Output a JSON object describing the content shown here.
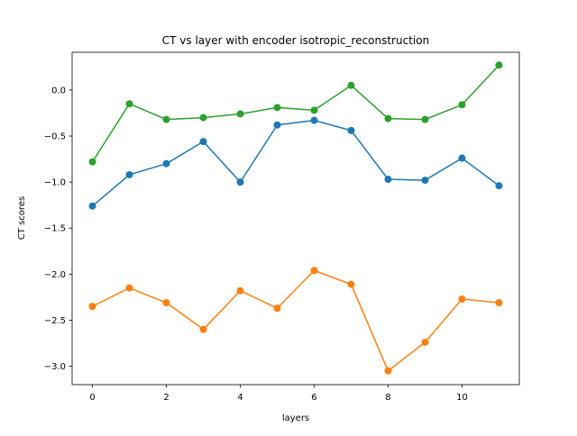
{
  "chart_data": {
    "type": "line",
    "title": "CT vs layer with encoder isotropic_reconstruction",
    "xlabel": "layers",
    "ylabel": "CT scores",
    "xlim": [
      -0.55,
      11.55
    ],
    "ylim": [
      -3.2,
      0.41
    ],
    "grid": false,
    "x": [
      0,
      1,
      2,
      3,
      4,
      5,
      6,
      7,
      8,
      9,
      10,
      11
    ],
    "xticks": [
      0,
      2,
      4,
      6,
      8,
      10
    ],
    "xtick_labels": [
      "0",
      "2",
      "4",
      "6",
      "8",
      "10"
    ],
    "yticks": [
      0.0,
      -0.5,
      -1.0,
      -1.5,
      -2.0,
      -2.5,
      -3.0
    ],
    "ytick_labels": [
      "0.0",
      "−0.5",
      "−1.0",
      "−1.5",
      "−2.0",
      "−2.5",
      "−3.0"
    ],
    "series": [
      {
        "color": "#1f77b4",
        "values": [
          -1.26,
          -0.92,
          -0.8,
          -0.56,
          -1.0,
          -0.38,
          -0.33,
          -0.44,
          -0.97,
          -0.98,
          -0.74,
          -1.04
        ]
      },
      {
        "color": "#ff7f0e",
        "values": [
          -2.35,
          -2.15,
          -2.31,
          -2.6,
          -2.18,
          -2.37,
          -1.96,
          -2.11,
          -3.05,
          -2.74,
          -2.27,
          -2.31
        ]
      },
      {
        "color": "#2ca02c",
        "values": [
          -0.78,
          -0.15,
          -0.32,
          -0.3,
          -0.26,
          -0.19,
          -0.22,
          0.05,
          -0.31,
          -0.32,
          -0.16,
          0.27
        ]
      }
    ]
  }
}
